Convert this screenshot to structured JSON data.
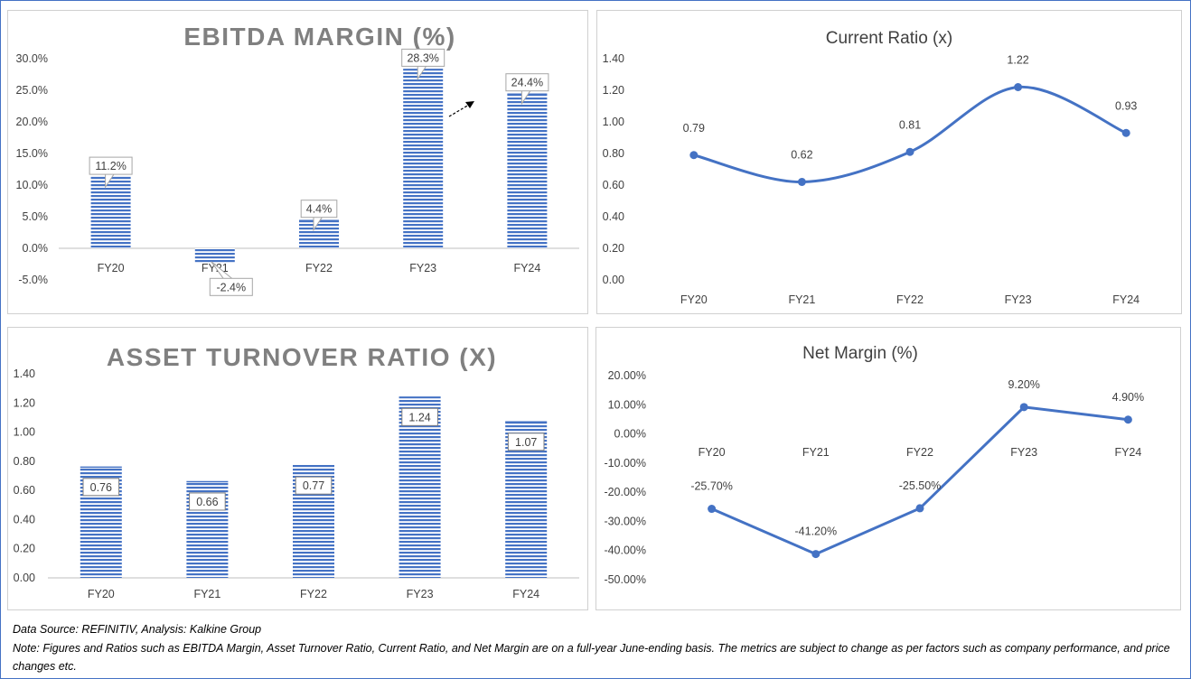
{
  "chart_data": [
    {
      "id": "ebitda",
      "type": "bar",
      "title": "EBITDA MARGIN (%)",
      "categories": [
        "FY20",
        "FY21",
        "FY22",
        "FY23",
        "FY24"
      ],
      "values": [
        11.2,
        -2.4,
        4.4,
        28.3,
        24.4
      ],
      "data_labels": [
        "11.2%",
        "-2.4%",
        "4.4%",
        "28.3%",
        "24.4%"
      ],
      "yticks": [
        "30.0%",
        "25.0%",
        "20.0%",
        "15.0%",
        "10.0%",
        "5.0%",
        "0.0%",
        "-5.0%"
      ],
      "ylim": [
        -5,
        30
      ],
      "grid": false,
      "legend": "none",
      "color": "#4472c4"
    },
    {
      "id": "current",
      "type": "line",
      "title": "Current Ratio (x)",
      "categories": [
        "FY20",
        "FY21",
        "FY22",
        "FY23",
        "FY24"
      ],
      "values": [
        0.79,
        0.62,
        0.81,
        1.22,
        0.93
      ],
      "data_labels": [
        "0.79",
        "0.62",
        "0.81",
        "1.22",
        "0.93"
      ],
      "yticks": [
        "1.40",
        "1.20",
        "1.00",
        "0.80",
        "0.60",
        "0.40",
        "0.20",
        "0.00"
      ],
      "ylim": [
        0,
        1.4
      ],
      "smooth": true,
      "grid": false,
      "legend": "none",
      "color": "#4472c4"
    },
    {
      "id": "asset",
      "type": "bar",
      "title": "ASSET TURNOVER RATIO (X)",
      "categories": [
        "FY20",
        "FY21",
        "FY22",
        "FY23",
        "FY24"
      ],
      "values": [
        0.76,
        0.66,
        0.77,
        1.24,
        1.07
      ],
      "data_labels": [
        "0.76",
        "0.66",
        "0.77",
        "1.24",
        "1.07"
      ],
      "yticks": [
        "1.40",
        "1.20",
        "1.00",
        "0.80",
        "0.60",
        "0.40",
        "0.20",
        "0.00"
      ],
      "ylim": [
        0,
        1.4
      ],
      "grid": false,
      "legend": "none",
      "color": "#4472c4"
    },
    {
      "id": "net",
      "type": "line",
      "title": "Net Margin (%)",
      "categories": [
        "FY20",
        "FY21",
        "FY22",
        "FY23",
        "FY24"
      ],
      "values": [
        -25.7,
        -41.2,
        -25.5,
        9.2,
        4.9
      ],
      "data_labels": [
        "-25.70%",
        "-41.20%",
        "-25.50%",
        "9.20%",
        "4.90%"
      ],
      "yticks": [
        "20.00%",
        "10.00%",
        "0.00%",
        "-10.00%",
        "-20.00%",
        "-30.00%",
        "-40.00%",
        "-50.00%"
      ],
      "ylim": [
        -50,
        20
      ],
      "smooth": false,
      "grid": false,
      "legend": "none",
      "color": "#4472c4"
    }
  ],
  "footer": {
    "source": "Data Source: REFINITIV, Analysis: Kalkine Group",
    "note": "Note: Figures and Ratios such as EBITDA Margin, Asset Turnover Ratio, Current Ratio, and Net Margin are on a full-year June-ending basis. The metrics are subject to change as per factors such as company performance, and price changes etc."
  }
}
